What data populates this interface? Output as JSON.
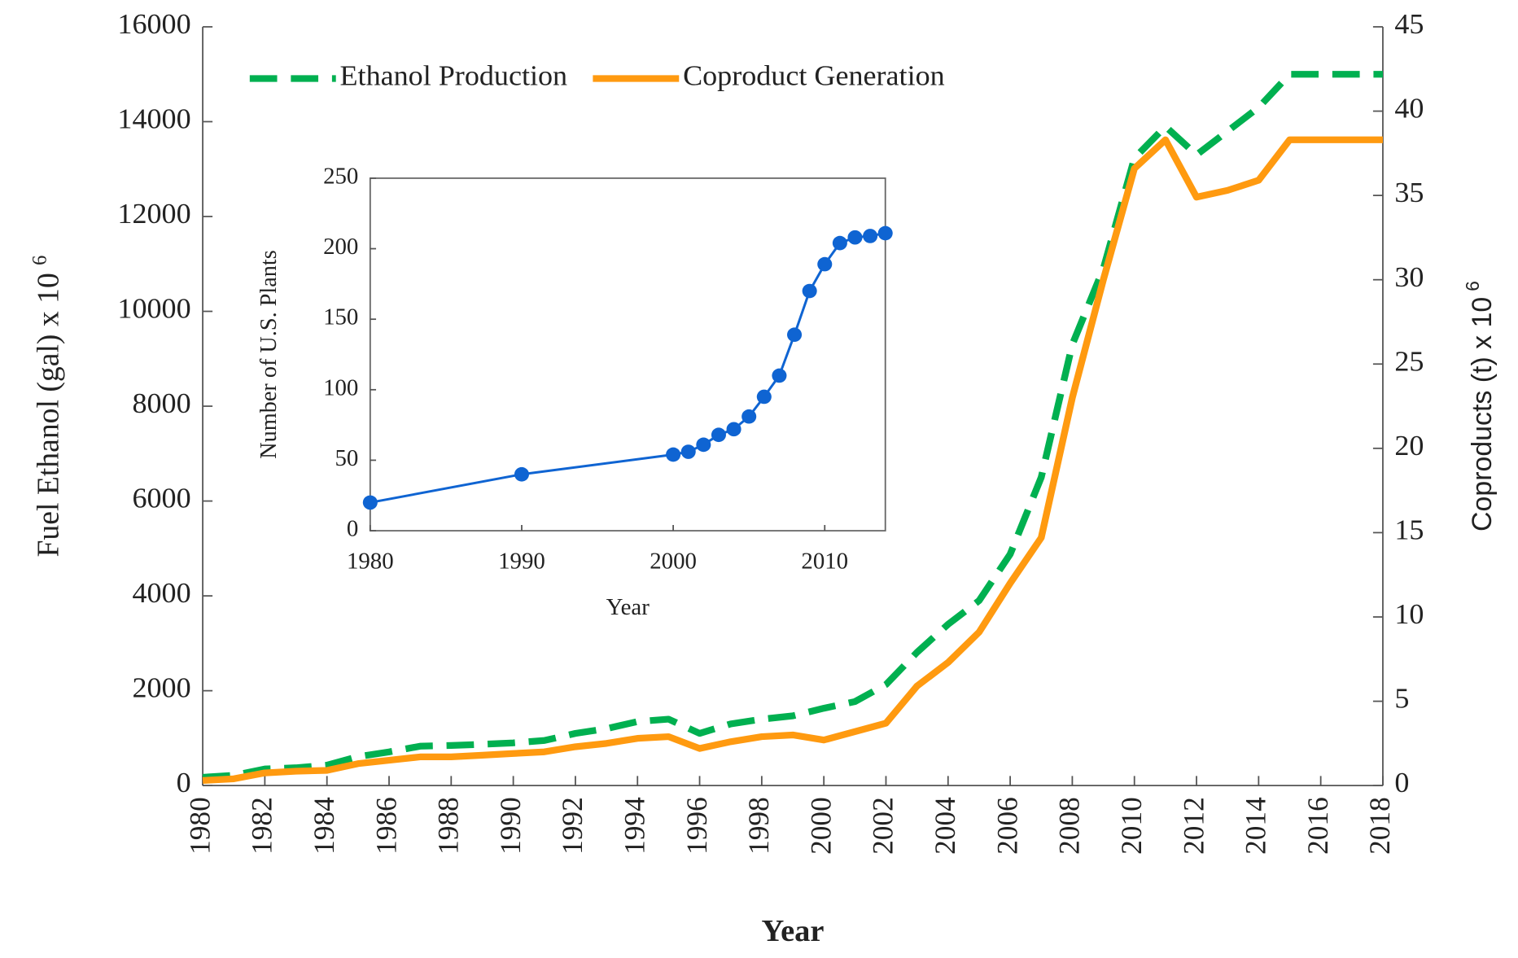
{
  "chart_data": [
    {
      "type": "line",
      "x_label": "Year",
      "y_label": "Fuel Ethanol (gal) x 10",
      "y_label_exponent": "6",
      "y2_label": "Coproducts (t) x 10",
      "y2_label_exponent": "6",
      "x": [
        1980,
        1981,
        1982,
        1983,
        1984,
        1985,
        1986,
        1987,
        1988,
        1989,
        1990,
        1991,
        1992,
        1993,
        1994,
        1995,
        1996,
        1997,
        1998,
        1999,
        2000,
        2001,
        2002,
        2003,
        2004,
        2005,
        2006,
        2007,
        2008,
        2009,
        2010,
        2011,
        2012,
        2013,
        2014,
        2015,
        2016,
        2017,
        2018
      ],
      "series": [
        {
          "name": "Ethanol Production",
          "color": "#00b050",
          "dash": true,
          "values": [
            175,
            215,
            350,
            375,
            430,
            610,
            710,
            830,
            845,
            870,
            900,
            950,
            1100,
            1200,
            1350,
            1400,
            1100,
            1300,
            1400,
            1470,
            1630,
            1770,
            2130,
            2810,
            3400,
            3900,
            4880,
            6500,
            9300,
            10900,
            13230,
            13900,
            13300,
            13800,
            14300,
            15000,
            15000,
            15000,
            15000
          ]
        },
        {
          "name": "Coproduct Generation",
          "color": "#ff9a10",
          "axis": "y2",
          "values": [
            0.3,
            0.4,
            0.75,
            0.85,
            0.9,
            1.3,
            1.5,
            1.7,
            1.7,
            1.8,
            1.9,
            2.0,
            2.3,
            2.5,
            2.8,
            2.9,
            2.2,
            2.6,
            2.9,
            3.0,
            2.7,
            3.2,
            3.7,
            5.9,
            7.3,
            9.1,
            12.0,
            14.7,
            23.0,
            30.0,
            36.6,
            38.3,
            34.9,
            35.3,
            35.9,
            38.3,
            38.3,
            38.3,
            38.3
          ]
        }
      ],
      "xlim": [
        1980,
        2018
      ],
      "xticks": [
        1980,
        1982,
        1984,
        1986,
        1988,
        1990,
        1992,
        1994,
        1996,
        1998,
        2000,
        2002,
        2004,
        2006,
        2008,
        2010,
        2012,
        2014,
        2016,
        2018
      ],
      "ylim": [
        0,
        16000
      ],
      "yticks": [
        0,
        2000,
        4000,
        6000,
        8000,
        10000,
        12000,
        14000,
        16000
      ],
      "y2lim": [
        0,
        45
      ],
      "y2ticks": [
        0,
        5,
        10,
        15,
        20,
        25,
        30,
        35,
        40,
        45
      ],
      "legend": "top-left"
    },
    {
      "type": "line",
      "x_label": "Year",
      "y_label": "Number of U.S. Plants",
      "x": [
        1980,
        1990,
        2000,
        2001,
        2002,
        2003,
        2004,
        2005,
        2006,
        2007,
        2008,
        2009,
        2010,
        2011,
        2012,
        2013,
        2014
      ],
      "values": [
        20,
        40,
        54,
        56,
        61,
        68,
        72,
        81,
        95,
        110,
        139,
        170,
        189,
        204,
        208,
        209,
        211
      ],
      "color": "#0f64d2",
      "markers": true,
      "xlim": [
        1980,
        2014
      ],
      "xticks": [
        1980,
        1990,
        2000,
        2010
      ],
      "ylim": [
        0,
        250
      ],
      "yticks": [
        0,
        50,
        100,
        150,
        200,
        250
      ]
    }
  ]
}
